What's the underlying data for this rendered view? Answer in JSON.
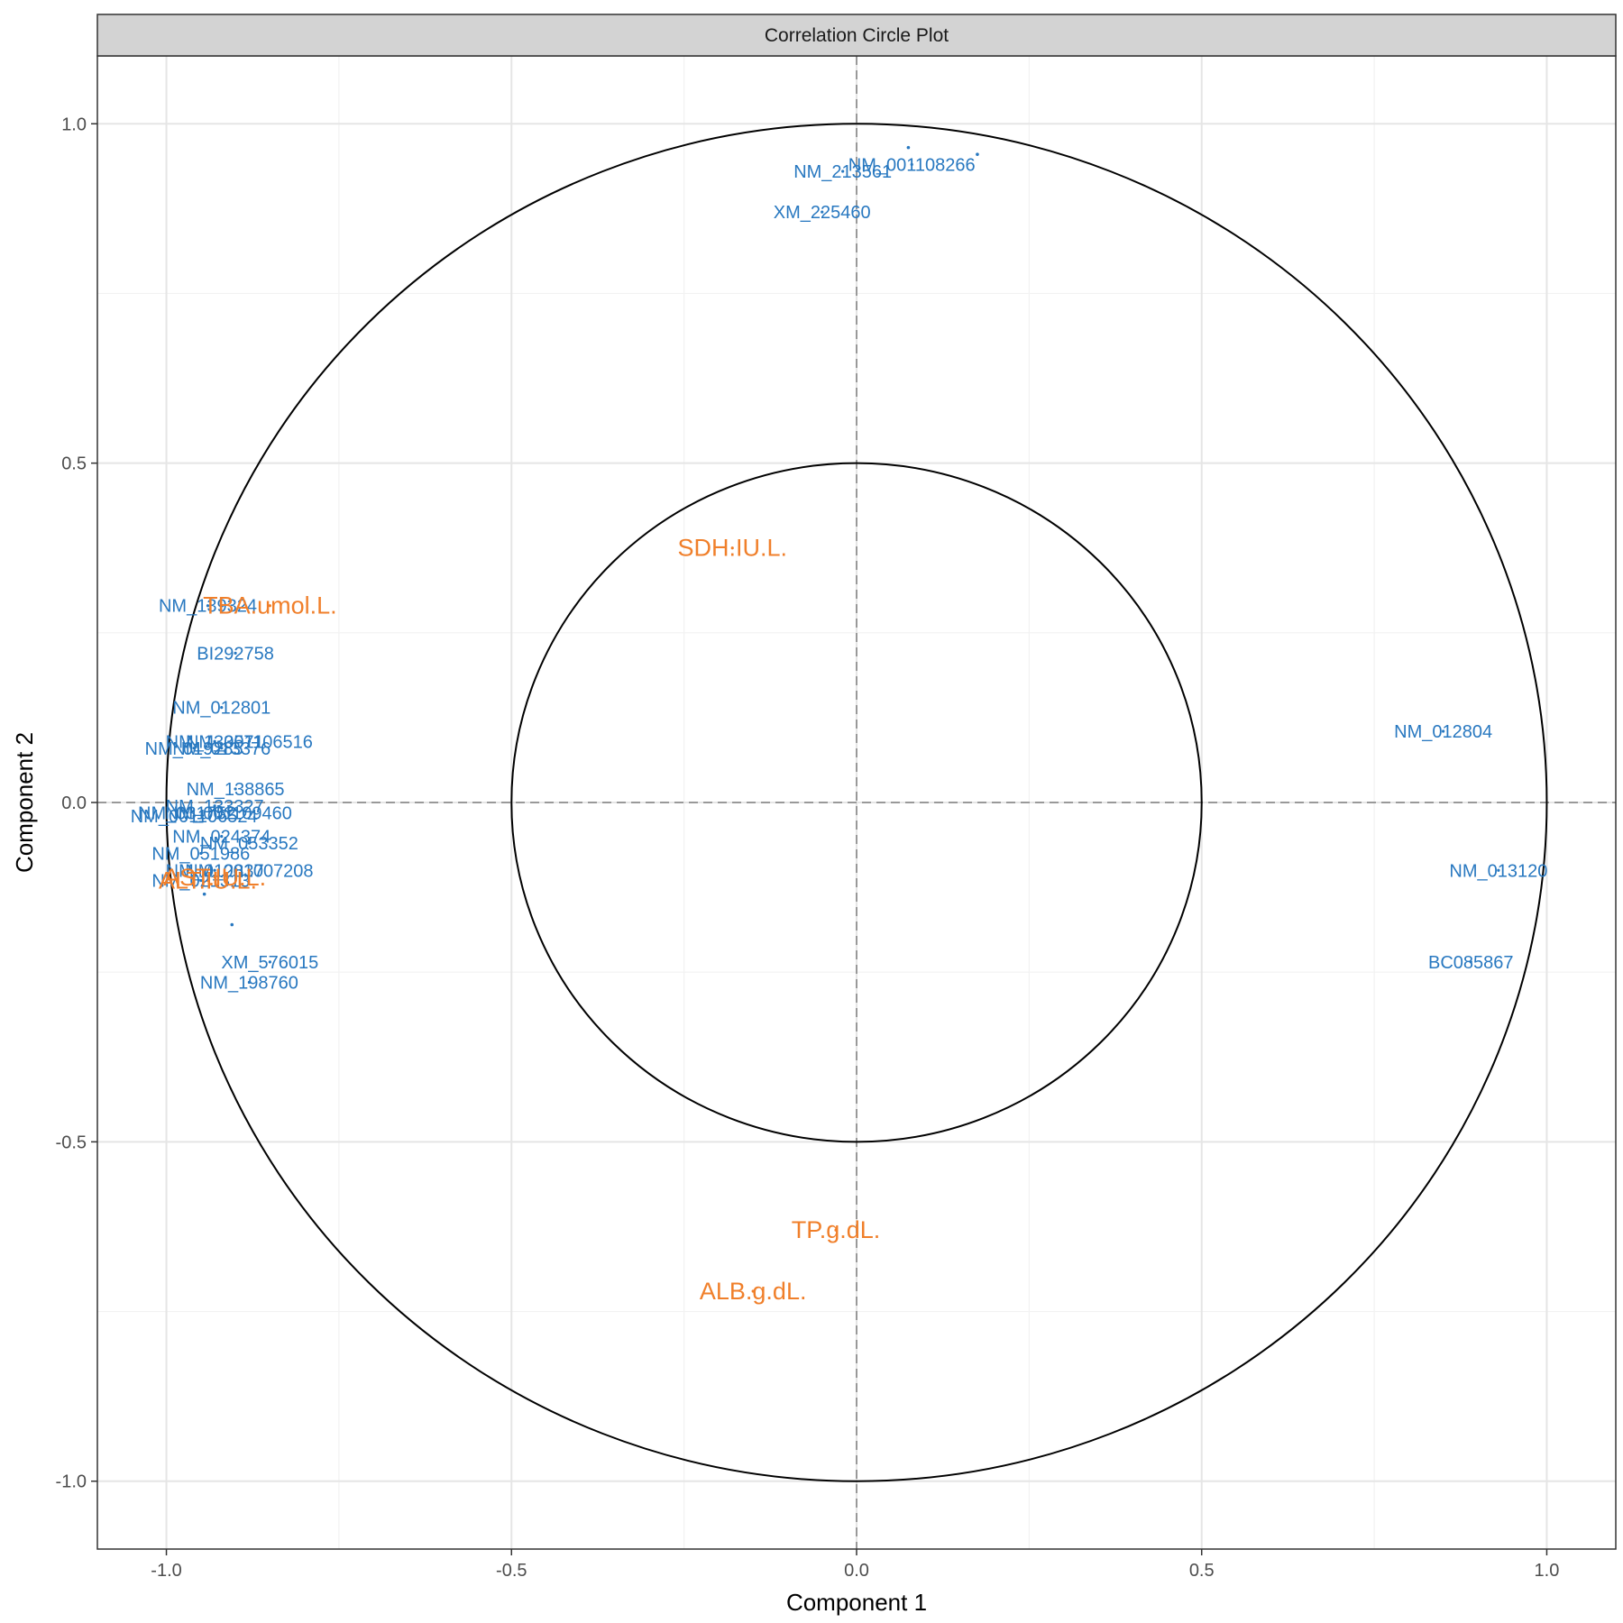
{
  "chart_data": {
    "type": "scatter",
    "title": "Correlation Circle Plot",
    "xlabel": "Component  1",
    "ylabel": "Component  2",
    "xlim": [
      -1.1,
      1.1
    ],
    "ylim": [
      -1.1,
      1.1
    ],
    "x_ticks": [
      -1.0,
      -0.5,
      0.0,
      0.5,
      1.0
    ],
    "y_ticks": [
      -1.0,
      -0.5,
      0.0,
      0.5,
      1.0
    ],
    "x_tick_labels": [
      "-1.0",
      "-0.5",
      "0.0",
      "0.5",
      "1.0"
    ],
    "y_tick_labels": [
      "-1.0",
      "-0.5",
      "0.0",
      "0.5",
      "1.0"
    ],
    "circles": [
      1.0,
      0.5
    ],
    "grid": true,
    "reference_lines": [
      0,
      0
    ],
    "colors": {
      "genes": "#2878c0",
      "clinical": "#f07f2a",
      "circle": "#000000",
      "grid_major": "#e5e5e5",
      "grid_minor": "#f2f2f2",
      "refline": "#999999",
      "strip_bg": "#d3d3d3"
    },
    "series": [
      {
        "points": [
          {
            "label": "NM_001108266",
            "x": 0.08,
            "y": 0.94
          },
          {
            "label": "NM_213561",
            "x": -0.02,
            "y": 0.93
          },
          {
            "label": "XM_225460",
            "x": -0.05,
            "y": 0.87
          },
          {
            "label": "NM_139324",
            "x": -0.94,
            "y": 0.29
          },
          {
            "label": "BI292758",
            "x": -0.9,
            "y": 0.22
          },
          {
            "label": "NM_012801",
            "x": -0.92,
            "y": 0.14
          },
          {
            "label": "NM_133571",
            "x": -0.93,
            "y": 0.09
          },
          {
            "label": "NM_001106516",
            "x": -0.88,
            "y": 0.09
          },
          {
            "label": "NM_013376",
            "x": -0.92,
            "y": 0.08
          },
          {
            "label": "NM_019285",
            "x": -0.96,
            "y": 0.08
          },
          {
            "label": "NM_138865",
            "x": -0.9,
            "y": 0.02
          },
          {
            "label": "NM_133327",
            "x": -0.93,
            "y": -0.005
          },
          {
            "label": "NM_001109460",
            "x": -0.91,
            "y": -0.015
          },
          {
            "label": "NM_001106524",
            "x": -0.96,
            "y": -0.02
          },
          {
            "label": "NM_031752",
            "x": -0.97,
            "y": -0.015
          },
          {
            "label": "NM_024374",
            "x": -0.92,
            "y": -0.05
          },
          {
            "label": "NM_053352",
            "x": -0.88,
            "y": -0.06
          },
          {
            "label": "NM_051986",
            "x": -0.95,
            "y": -0.075
          },
          {
            "label": "NM_001007208",
            "x": -0.88,
            "y": -0.1
          },
          {
            "label": "NM_012837",
            "x": -0.93,
            "y": -0.1
          },
          {
            "label": "NM_021313",
            "x": -0.95,
            "y": -0.115
          },
          {
            "label": "XM_576015",
            "x": -0.85,
            "y": -0.235
          },
          {
            "label": "NM_198760",
            "x": -0.88,
            "y": -0.265
          },
          {
            "label": "NM_012804",
            "x": 0.85,
            "y": 0.105
          },
          {
            "label": "NM_013120",
            "x": 0.93,
            "y": -0.1
          },
          {
            "label": "BC085867",
            "x": 0.89,
            "y": -0.235
          }
        ]
      },
      {
        "points": [
          {
            "label": "TBA.umol.L.",
            "x": -0.85,
            "y": 0.29
          },
          {
            "label": "SDH.IU.L.",
            "x": -0.18,
            "y": 0.375
          },
          {
            "label": "AST.IU.L.",
            "x": -0.93,
            "y": -0.11
          },
          {
            "label": "ALT.IU.L.",
            "x": -0.94,
            "y": -0.115
          },
          {
            "label": "TP.g.dL.",
            "x": -0.03,
            "y": -0.63
          },
          {
            "label": "ALB.g.dL.",
            "x": -0.15,
            "y": -0.72
          }
        ]
      }
    ],
    "extra_points": [
      {
        "x": 0.075,
        "y": 0.965
      },
      {
        "x": 0.175,
        "y": 0.955
      },
      {
        "x": -0.945,
        "y": -0.135
      },
      {
        "x": -0.905,
        "y": -0.18
      }
    ]
  }
}
